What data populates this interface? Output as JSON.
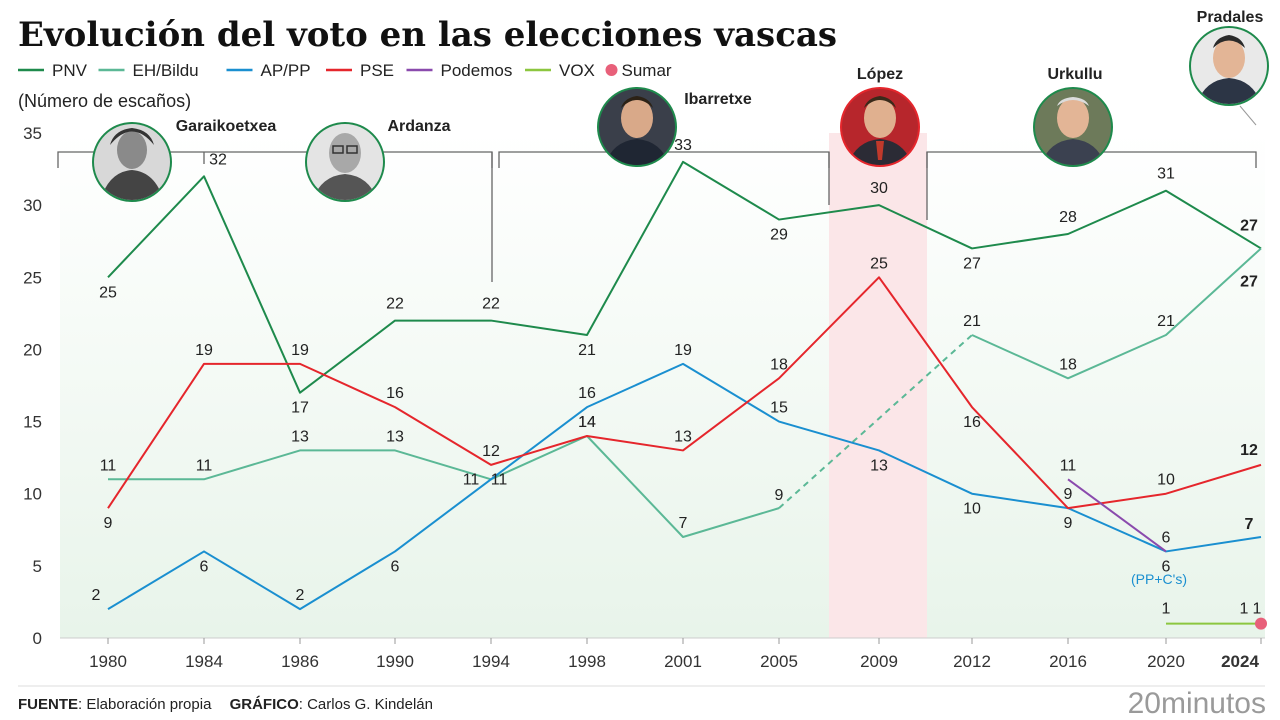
{
  "title": "Evolución del voto en las elecciones vascas",
  "y_axis_label": "(Número de escaños)",
  "chart_data": {
    "type": "line",
    "x": [
      "1980",
      "1984",
      "1986",
      "1990",
      "1994",
      "1998",
      "2001",
      "2005",
      "2009",
      "2012",
      "2016",
      "2020",
      "2024"
    ],
    "ylim": [
      0,
      35
    ],
    "yticks": [
      0,
      5,
      10,
      15,
      20,
      25,
      30,
      35
    ],
    "grid": false,
    "legend_position": "top-left",
    "series": [
      {
        "name": "PNV",
        "color": "#1e8a4c",
        "values": [
          25,
          32,
          17,
          22,
          22,
          21,
          33,
          29,
          30,
          27,
          28,
          31,
          27
        ]
      },
      {
        "name": "EH/Bildu",
        "color": "#5bb896",
        "values": [
          11,
          11,
          13,
          13,
          11,
          14,
          7,
          9,
          null,
          21,
          18,
          21,
          27
        ]
      },
      {
        "name": "AP/PP",
        "color": "#1a8fd0",
        "values": [
          2,
          6,
          2,
          6,
          11,
          16,
          19,
          15,
          13,
          10,
          9,
          6,
          7
        ]
      },
      {
        "name": "PSE",
        "color": "#e5262c",
        "values": [
          9,
          19,
          19,
          16,
          12,
          14,
          13,
          18,
          25,
          16,
          9,
          10,
          12
        ]
      },
      {
        "name": "Podemos",
        "color": "#8a4aad",
        "values": [
          null,
          null,
          null,
          null,
          null,
          null,
          null,
          null,
          null,
          null,
          11,
          6,
          null
        ]
      },
      {
        "name": "VOX",
        "color": "#8cc63f",
        "values": [
          null,
          null,
          null,
          null,
          null,
          null,
          null,
          null,
          null,
          null,
          null,
          1,
          1
        ]
      },
      {
        "name": "Sumar",
        "color": "#e8607a",
        "values": [
          null,
          null,
          null,
          null,
          null,
          null,
          null,
          null,
          null,
          null,
          null,
          null,
          1
        ]
      }
    ],
    "data_labels": {
      "PNV": [
        "25",
        "32",
        "17",
        "22",
        "22",
        "21",
        "33",
        "29",
        "30",
        "27",
        "28",
        "31",
        "27"
      ],
      "EH/Bildu": [
        "11",
        "11",
        "13",
        "13",
        "11",
        "14",
        "7",
        "9",
        "",
        "21",
        "18",
        "21",
        "27"
      ],
      "AP/PP": [
        "2",
        "6",
        "2",
        "6",
        "11",
        "16",
        "19",
        "15",
        "13",
        "10",
        "9",
        "6",
        "7"
      ],
      "PSE": [
        "9",
        "19",
        "19",
        "16",
        "12",
        "14",
        "13",
        "18",
        "25",
        "16",
        "9",
        "10",
        "12"
      ],
      "Podemos": [
        "",
        "",
        "",
        "",
        "",
        "",
        "",
        "",
        "",
        "",
        "11",
        "6",
        ""
      ],
      "VOX": [
        "",
        "",
        "",
        "",
        "",
        "",
        "",
        "",
        "",
        "",
        "",
        "1",
        "1"
      ],
      "Sumar": [
        "",
        "",
        "",
        "",
        "",
        "",
        "",
        "",
        "",
        "",
        "",
        "",
        "1"
      ]
    },
    "pp_note": "(PP+C's)",
    "presidents": [
      {
        "name": "Garaikoetxea",
        "from": "1980",
        "to": "1986"
      },
      {
        "name": "Ardanza",
        "from": "1986",
        "to": "1998"
      },
      {
        "name": "Ibarretxe",
        "from": "1998",
        "to": "2009"
      },
      {
        "name": "López",
        "from": "2009",
        "to": "2012"
      },
      {
        "name": "Urkullu",
        "from": "2012",
        "to": "2024"
      },
      {
        "name": "Pradales",
        "from": "2024",
        "to": "2024"
      }
    ]
  },
  "footer": {
    "source_label": "FUENTE",
    "source_text": ": Elaboración propia",
    "graphic_label": "GRÁFICO",
    "graphic_text": ": Carlos G. Kindelán",
    "logo": "20minutos"
  }
}
